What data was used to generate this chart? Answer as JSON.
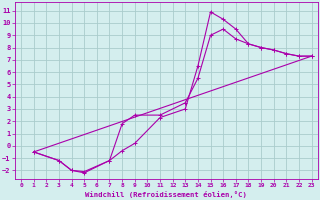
{
  "xlabel": "Windchill (Refroidissement éolien,°C)",
  "background_color": "#d4eeee",
  "grid_color": "#aacccc",
  "line_color": "#aa00aa",
  "xlim": [
    -0.5,
    23.5
  ],
  "ylim": [
    -2.7,
    11.7
  ],
  "xticks": [
    0,
    1,
    2,
    3,
    4,
    5,
    6,
    7,
    8,
    9,
    10,
    11,
    12,
    13,
    14,
    15,
    16,
    17,
    18,
    19,
    20,
    21,
    22,
    23
  ],
  "yticks": [
    -2,
    -1,
    0,
    1,
    2,
    3,
    4,
    5,
    6,
    7,
    8,
    9,
    10,
    11
  ],
  "line1_x": [
    1,
    3,
    4,
    5,
    7,
    8,
    9,
    11,
    13,
    14,
    15,
    16,
    17,
    18,
    19,
    20,
    21,
    22,
    23
  ],
  "line1_y": [
    -0.5,
    -1.2,
    -2.0,
    -2.1,
    -1.2,
    -0.4,
    0.2,
    2.3,
    3.0,
    6.5,
    10.9,
    10.3,
    9.5,
    8.3,
    8.0,
    7.8,
    7.5,
    7.3,
    7.3
  ],
  "line2_x": [
    1,
    3,
    4,
    5,
    7,
    8,
    9,
    11,
    13,
    14,
    15,
    16,
    17,
    18,
    19,
    20,
    21,
    22,
    23
  ],
  "line2_y": [
    -0.5,
    -1.2,
    -2.0,
    -2.2,
    -1.2,
    1.8,
    2.5,
    2.5,
    3.5,
    5.5,
    9.0,
    9.5,
    8.7,
    8.3,
    8.0,
    7.8,
    7.5,
    7.3,
    7.3
  ],
  "line3_x": [
    1,
    23
  ],
  "line3_y": [
    -0.5,
    7.3
  ],
  "marker_size": 2.5,
  "line_width": 0.8
}
